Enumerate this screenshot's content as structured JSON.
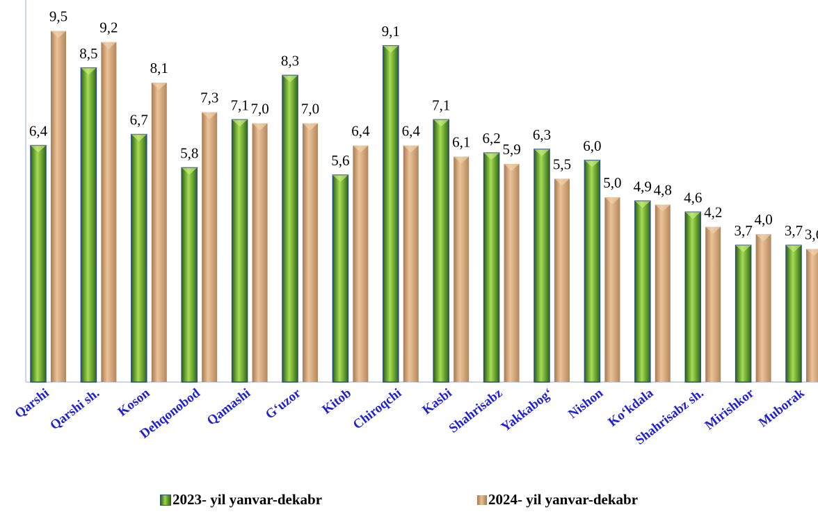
{
  "header": {
    "title_fragment": ""
  },
  "chart_data": {
    "type": "bar",
    "title": "",
    "xlabel": "",
    "ylabel": "",
    "ylim": [
      0,
      10
    ],
    "grid": false,
    "legend_position": "bottom",
    "categories": [
      "Qarshi",
      "Qarshi sh.",
      "Koson",
      "Dehqonobod",
      "Qamashi",
      "G‘uzor",
      "Kitob",
      "Chiroqchi",
      "Kasbi",
      "Shahrisabz",
      "Yakkabog‘",
      "Nishon",
      "Ko‘kdala",
      "Shahrisabz sh.",
      "Mirishkor",
      "Muborak"
    ],
    "series": [
      {
        "name": "2023- yil yanvar-dekabr",
        "color": "#7cc234",
        "values": [
          6.4,
          8.5,
          6.7,
          5.8,
          7.1,
          8.3,
          5.6,
          9.1,
          7.1,
          6.2,
          6.3,
          6.0,
          4.9,
          4.6,
          3.7,
          3.7
        ]
      },
      {
        "name": "2024- yil yanvar-dekabr",
        "color": "#d9a77c",
        "values": [
          9.5,
          9.2,
          8.1,
          7.3,
          7.0,
          7.0,
          6.4,
          6.4,
          6.1,
          5.9,
          5.5,
          5.0,
          4.8,
          4.2,
          4.0,
          3.6
        ]
      }
    ],
    "value_labels": {
      "series1": [
        "6,4",
        "8,5",
        "6,7",
        "5,8",
        "7,1",
        "8,3",
        "5,6",
        "9,1",
        "7,1",
        "6,2",
        "6,3",
        "6,0",
        "4,9",
        "4,6",
        "3,7",
        "3,7"
      ],
      "series2": [
        "9,5",
        "9,2",
        "8,1",
        "7,3",
        "7,0",
        "7,0",
        "6,4",
        "6,4",
        "6,1",
        "5,9",
        "5,5",
        "5,0",
        "4,8",
        "4,2",
        "4,0",
        "3,6"
      ]
    }
  }
}
